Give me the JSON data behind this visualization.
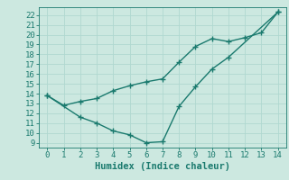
{
  "line1_x": [
    0,
    1,
    2,
    3,
    4,
    5,
    6,
    7,
    8,
    9,
    10,
    11,
    12,
    13,
    14
  ],
  "line1_y": [
    13.8,
    12.8,
    13.2,
    13.5,
    14.3,
    14.8,
    15.2,
    15.5,
    17.2,
    18.8,
    19.6,
    19.3,
    19.7,
    20.2,
    22.3
  ],
  "line2_x": [
    0,
    2,
    3,
    4,
    5,
    6,
    7,
    8,
    9,
    10,
    11,
    14
  ],
  "line2_y": [
    13.8,
    11.6,
    11.0,
    10.2,
    9.8,
    9.0,
    9.1,
    12.7,
    14.7,
    16.5,
    17.7,
    22.3
  ],
  "color": "#1a7a6e",
  "bg_color": "#cce8e0",
  "grid_color": "#b0d8d0",
  "xlabel": "Humidex (Indice chaleur)",
  "xlim": [
    -0.5,
    14.5
  ],
  "ylim": [
    8.5,
    22.8
  ],
  "xticks": [
    0,
    1,
    2,
    3,
    4,
    5,
    6,
    7,
    8,
    9,
    10,
    11,
    12,
    13,
    14
  ],
  "yticks": [
    9,
    10,
    11,
    12,
    13,
    14,
    15,
    16,
    17,
    18,
    19,
    20,
    21,
    22
  ],
  "marker": "+",
  "linewidth": 1.0,
  "markersize": 4,
  "xlabel_fontsize": 7.5,
  "tick_fontsize": 6.5
}
